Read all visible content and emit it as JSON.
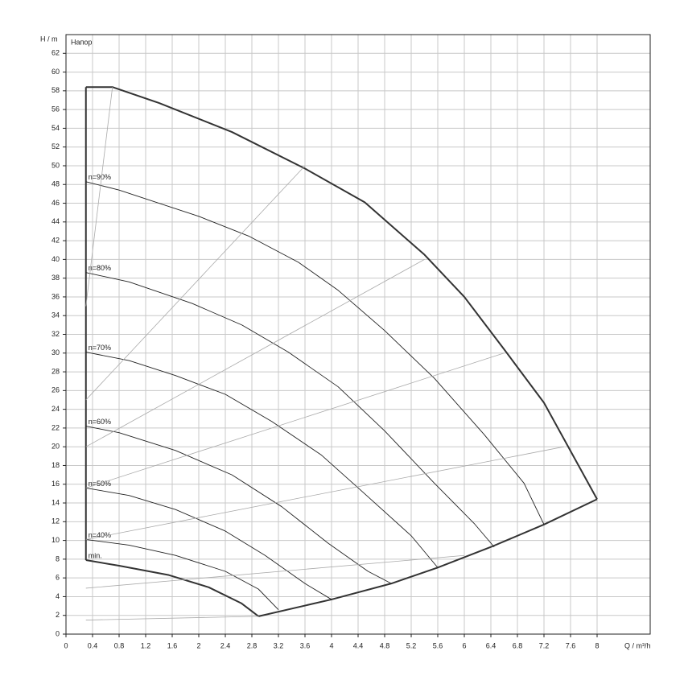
{
  "chart_data": {
    "type": "line",
    "y_label": "H / m",
    "x_label": "Q / m³/h",
    "annotation": "Напор",
    "xlim": [
      0,
      8.8
    ],
    "ylim": [
      0,
      64
    ],
    "xticks": [
      0,
      0.4,
      0.8,
      1.2,
      1.6,
      2,
      2.4,
      2.8,
      3.2,
      3.6,
      4,
      4.4,
      4.8,
      5.2,
      5.6,
      6,
      6.4,
      6.8,
      7.2,
      7.6,
      8
    ],
    "yticks": [
      0,
      2,
      4,
      6,
      8,
      10,
      12,
      14,
      16,
      18,
      20,
      22,
      24,
      26,
      28,
      30,
      32,
      34,
      36,
      38,
      40,
      42,
      44,
      46,
      48,
      50,
      52,
      54,
      56,
      58,
      60,
      62
    ],
    "grid": true,
    "series": [
      {
        "color": "#333333",
        "width": 2,
        "x": [
          0.3,
          0.3
        ],
        "values": [
          7.9,
          58.4
        ]
      },
      {
        "color": "#333333",
        "width": 2,
        "x": [
          0.3,
          0.7,
          1.4,
          2.5,
          3.6,
          4.5,
          5.4,
          6,
          6.6,
          7.2,
          8
        ],
        "values": [
          58.4,
          58.4,
          56.7,
          53.6,
          49.7,
          46.1,
          40.5,
          36,
          30.4,
          24.7,
          14.4
        ]
      },
      {
        "color": "#333333",
        "width": 2,
        "x": [
          2.9,
          4,
          4.9,
          5.6,
          6.4,
          7.2,
          8
        ],
        "values": [
          1.9,
          3.7,
          5.4,
          7.1,
          9.3,
          11.7,
          14.4
        ]
      },
      {
        "color": "#333333",
        "width": 2,
        "label": "min.",
        "x": [
          0.3,
          0.8,
          1.55,
          2.15,
          2.64,
          2.9
        ],
        "values": [
          7.9,
          7.3,
          6.3,
          5.0,
          3.3,
          1.9
        ]
      },
      {
        "color": "#222222",
        "width": 0.9,
        "label": "n=90%",
        "x": [
          0.3,
          0.8,
          2,
          2.75,
          3.5,
          4.1,
          4.8,
          5.55,
          6.3,
          6.9,
          7.2
        ],
        "values": [
          48.3,
          47.4,
          44.6,
          42.5,
          39.7,
          36.7,
          32.4,
          27.3,
          21.3,
          16.1,
          11.7
        ]
      },
      {
        "color": "#222222",
        "width": 0.9,
        "label": "n=80%",
        "x": [
          0.3,
          0.95,
          1.9,
          2.65,
          3.35,
          4.1,
          4.8,
          5.55,
          6.15,
          6.45
        ],
        "values": [
          38.6,
          37.6,
          35.3,
          33,
          30.1,
          26.4,
          21.7,
          16.1,
          11.8,
          9.3
        ]
      },
      {
        "color": "#222222",
        "width": 0.9,
        "label": "n=70%",
        "x": [
          0.3,
          0.95,
          1.65,
          2.4,
          3.1,
          3.85,
          4.45,
          5.2,
          5.6
        ],
        "values": [
          30.1,
          29.2,
          27.6,
          25.6,
          22.7,
          19.1,
          15.3,
          10.5,
          7.1
        ]
      },
      {
        "color": "#222222",
        "width": 0.9,
        "label": "n=60%",
        "x": [
          0.3,
          0.8,
          1.65,
          2.5,
          3.25,
          3.95,
          4.55,
          4.9
        ],
        "values": [
          22.2,
          21.5,
          19.6,
          17,
          13.6,
          9.7,
          6.7,
          5.4
        ]
      },
      {
        "color": "#222222",
        "width": 0.9,
        "label": "n=50%",
        "x": [
          0.3,
          0.95,
          1.65,
          2.4,
          3.0,
          3.6,
          4.0
        ],
        "values": [
          15.6,
          14.8,
          13.3,
          11,
          8.4,
          5.4,
          3.7
        ]
      },
      {
        "color": "#222222",
        "width": 0.9,
        "label": "n=40%",
        "x": [
          0.3,
          0.95,
          1.65,
          2.4,
          2.9,
          3.2
        ],
        "values": [
          10.1,
          9.5,
          8.4,
          6.7,
          4.8,
          2.6
        ]
      },
      {
        "color": "#aaaaaa",
        "width": 0.8,
        "x": [
          0.3,
          2.9
        ],
        "values": [
          1.5,
          1.9
        ]
      },
      {
        "color": "#aaaaaa",
        "width": 0.8,
        "x": [
          0.3,
          6.0
        ],
        "values": [
          4.9,
          8.4
        ]
      },
      {
        "color": "#aaaaaa",
        "width": 0.8,
        "x": [
          0.3,
          7.5
        ],
        "values": [
          10.1,
          20
        ]
      },
      {
        "color": "#aaaaaa",
        "width": 0.8,
        "x": [
          0.3,
          6.6
        ],
        "values": [
          15.6,
          30
        ]
      },
      {
        "color": "#aaaaaa",
        "width": 0.8,
        "x": [
          0.3,
          5.4
        ],
        "values": [
          20,
          40
        ]
      },
      {
        "color": "#aaaaaa",
        "width": 0.8,
        "x": [
          0.3,
          3.6
        ],
        "values": [
          25,
          50
        ]
      },
      {
        "color": "#aaaaaa",
        "width": 0.8,
        "x": [
          0.3,
          0.7
        ],
        "values": [
          35,
          58.4
        ]
      }
    ]
  }
}
